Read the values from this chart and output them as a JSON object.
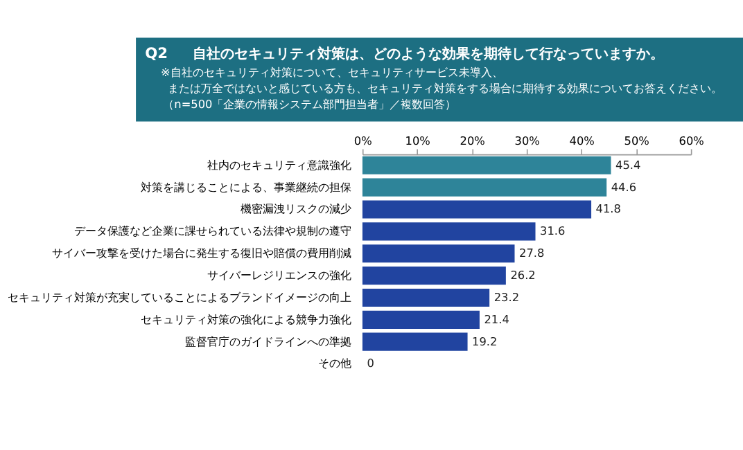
{
  "chart_data": {
    "type": "bar",
    "orientation": "horizontal",
    "title": "自社のセキュリティ対策は、どのような効果を期待して行なっていますか。",
    "subtitle": "※自社のセキュリティ対策について、セキュリティサービス未導入、または万全ではないと感じている方も、セキュリティ対策をする場合に期待する効果についてお答えください。",
    "annotations": [
      "Q2",
      "（n=500「企業の情報システム部門担当者」／複数回答）"
    ],
    "categories": [
      "社内のセキュリティ意識強化",
      "対策を講じることによる、事業継続の担保",
      "機密漏洩リスクの減少",
      "データ保護など企業に課せられている法律や規制の遵守",
      "サイバー攻撃を受けた場合に発生する復旧や賠償の費用削減",
      "サイバーレジリエンスの強化",
      "セキュリティ対策が充実していることによるブランドイメージの向上",
      "セキュリティ対策の強化による競争力強化",
      "監督官庁のガイドラインへの準拠",
      "その他"
    ],
    "values": [
      45.4,
      44.6,
      41.8,
      31.6,
      27.8,
      26.2,
      23.2,
      21.4,
      19.2,
      0
    ],
    "colors": [
      "#2e8499",
      "#2e8499",
      "#2144a0",
      "#2144a0",
      "#2144a0",
      "#2144a0",
      "#2144a0",
      "#2144a0",
      "#2144a0",
      "#2144a0"
    ],
    "data_labels": true,
    "xlim": [
      0,
      60
    ],
    "xticks": [
      {
        "value": 0,
        "label": "0%"
      },
      {
        "value": 10,
        "label": "10%"
      },
      {
        "value": 20,
        "label": "20%"
      },
      {
        "value": 30,
        "label": "30%"
      },
      {
        "value": 40,
        "label": "40%"
      },
      {
        "value": 50,
        "label": "50%"
      },
      {
        "value": 60,
        "label": "60%"
      }
    ],
    "grid": false,
    "legend": false
  }
}
